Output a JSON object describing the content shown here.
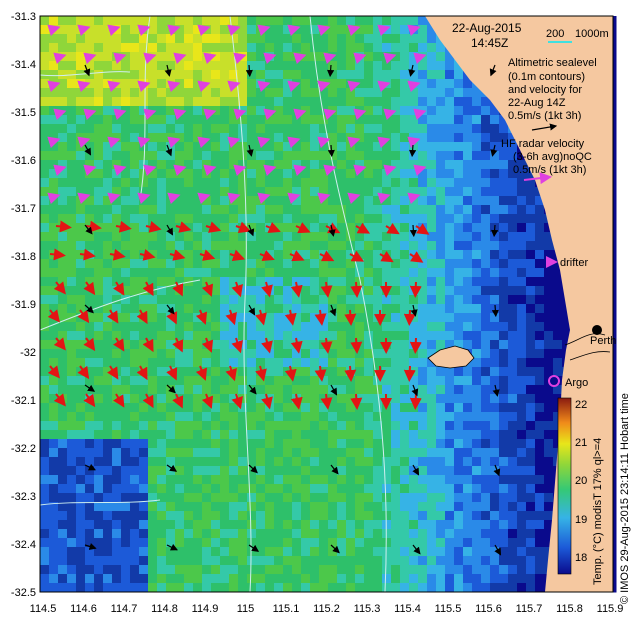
{
  "header": {
    "date": "22-Aug-2015",
    "time": "14:45Z"
  },
  "scale": {
    "left": "200",
    "right": "1000m"
  },
  "legend": {
    "altimetry_lines": [
      "Altimetric sealevel",
      "(0.1m contours)",
      "and velocity for",
      "22-Aug 14Z",
      "0.5m/s (1kt 3h)"
    ],
    "hf_lines": [
      "HF radar velocity",
      "(3-6h avg)noQC",
      "0.5m/s (1kt 3h)"
    ],
    "drifter": "drifter",
    "argo": "Argo",
    "city": "Perth"
  },
  "colorbar": {
    "ticks": [
      "22",
      "21",
      "20",
      "19",
      "18"
    ],
    "caption": "Temp. (°C) modisT 17% ql>=4",
    "credit": "© IMOS 29-Aug-2015 23:14:11 Hobart time"
  },
  "axes": {
    "x_ticks": [
      "114.5",
      "114.6",
      "114.7",
      "114.8",
      "114.9",
      "115",
      "115.1",
      "115.2",
      "115.3",
      "115.4",
      "115.5",
      "115.6",
      "115.7",
      "115.8",
      "115.9"
    ],
    "y_ticks": [
      "-31.3",
      "-31.4",
      "-31.5",
      "-31.6",
      "-31.7",
      "-31.8",
      "-31.9",
      "-32",
      "-32.1",
      "-32.2",
      "-32.3",
      "-32.4",
      "-32.5"
    ]
  },
  "colors": {
    "land": "#f5c8a0",
    "hf_arrow": "#e31414",
    "hf_legend_arrow": "#e040e0",
    "altimetry_arrow": "#000000",
    "scale_bar": "#40e0e0"
  }
}
